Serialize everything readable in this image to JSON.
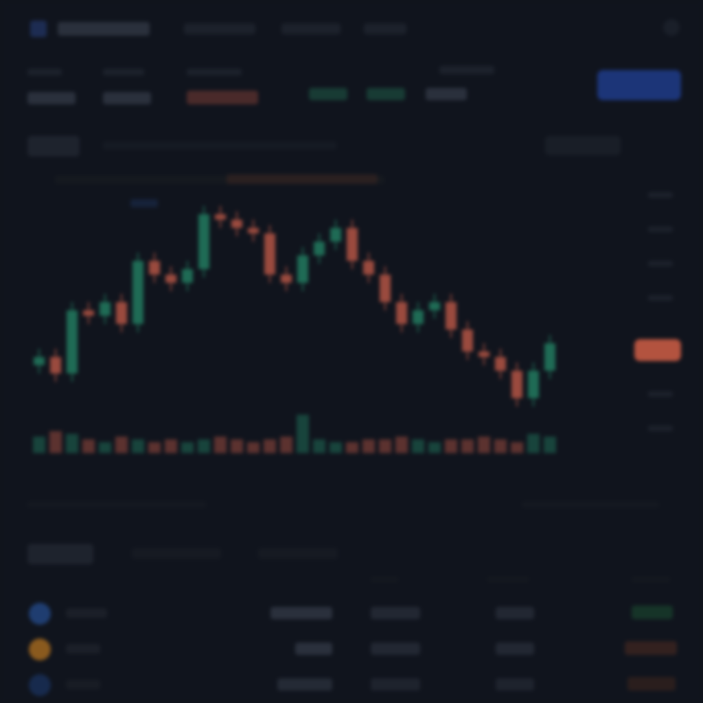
{
  "chart_data": {
    "type": "candlestick",
    "open": [
      42,
      45,
      39,
      62,
      60,
      65,
      57,
      80,
      75,
      72,
      77,
      97,
      95,
      92,
      90,
      75,
      72,
      82,
      87,
      92,
      80,
      75,
      65,
      57,
      62,
      65,
      55,
      47,
      45,
      40,
      30,
      40
    ],
    "close": [
      45,
      39,
      62,
      60,
      65,
      57,
      80,
      75,
      72,
      77,
      97,
      95,
      92,
      90,
      75,
      72,
      82,
      87,
      92,
      80,
      75,
      65,
      57,
      62,
      65,
      55,
      47,
      45,
      40,
      30,
      40,
      50
    ],
    "high": [
      48,
      48,
      65,
      65,
      68,
      68,
      83,
      83,
      78,
      80,
      100,
      100,
      98,
      95,
      93,
      78,
      85,
      90,
      95,
      95,
      83,
      78,
      68,
      65,
      68,
      68,
      58,
      50,
      48,
      43,
      43,
      53
    ],
    "low": [
      39,
      36,
      36,
      57,
      57,
      54,
      54,
      72,
      69,
      69,
      74,
      92,
      89,
      87,
      72,
      69,
      69,
      79,
      84,
      77,
      72,
      62,
      54,
      54,
      59,
      52,
      44,
      42,
      37,
      27,
      27,
      37
    ],
    "volume": [
      6,
      8,
      7,
      5,
      4,
      6,
      5,
      4,
      5,
      4,
      5,
      6,
      5,
      4,
      5,
      6,
      14,
      5,
      4,
      4,
      5,
      5,
      6,
      5,
      4,
      5,
      5,
      6,
      5,
      4,
      7,
      6
    ],
    "ylim": [
      0,
      110
    ],
    "volume_lim": [
      0,
      20
    ],
    "up_color": "#1f6b55",
    "down_color": "#9a4a3e"
  }
}
